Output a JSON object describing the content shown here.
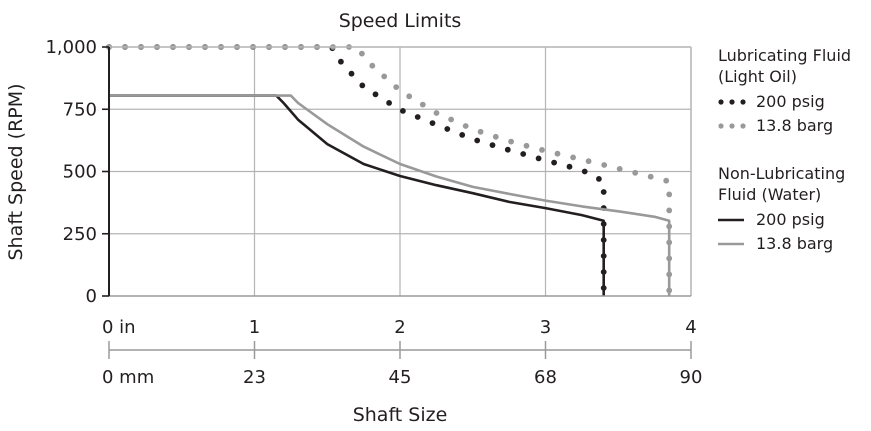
{
  "chart_data": {
    "type": "line",
    "title": "Speed Limits",
    "xlabel": "Shaft Size",
    "ylabel": "Shaft Speed (RPM)",
    "xlim": [
      0,
      4
    ],
    "ylim": [
      0,
      1000
    ],
    "grid": true,
    "legend_position": "right",
    "y_ticks": [
      {
        "value": 0,
        "label": "0"
      },
      {
        "value": 250,
        "label": "250"
      },
      {
        "value": 500,
        "label": "500"
      },
      {
        "value": 750,
        "label": "750"
      },
      {
        "value": 1000,
        "label": "1,000"
      }
    ],
    "x_ticks_in": [
      {
        "value": 0,
        "label": "0 in"
      },
      {
        "value": 1,
        "label": "1"
      },
      {
        "value": 2,
        "label": "2"
      },
      {
        "value": 3,
        "label": "3"
      },
      {
        "value": 4,
        "label": "4"
      }
    ],
    "x_ticks_mm": [
      {
        "value": 0,
        "label": "0 mm"
      },
      {
        "value": 1,
        "label": "23"
      },
      {
        "value": 2,
        "label": "45"
      },
      {
        "value": 3,
        "label": "68"
      },
      {
        "value": 4,
        "label": "90"
      }
    ],
    "legend_groups": [
      {
        "title_lines": [
          "Lubricating Fluid",
          "(Light Oil)"
        ],
        "entries": [
          {
            "label": "200 psig",
            "series": "oil-200psig"
          },
          {
            "label": "13.8 barg",
            "series": "oil-13.8barg"
          }
        ]
      },
      {
        "title_lines": [
          "Non-Lubricating",
          "Fluid (Water)"
        ],
        "entries": [
          {
            "label": "200 psig",
            "series": "water-200psig"
          },
          {
            "label": "13.8 barg",
            "series": "water-13.8barg"
          }
        ]
      }
    ],
    "series": [
      {
        "id": "oil-200psig",
        "style": "dotted",
        "color": "#231f20",
        "x": [
          0,
          1.53,
          1.6,
          1.75,
          2.0,
          2.25,
          2.5,
          2.75,
          3.0,
          3.25,
          3.4,
          3.4,
          3.4,
          3.4,
          3.4
        ],
        "y": [
          1000,
          1000,
          935,
          840,
          748,
          688,
          630,
          586,
          545,
          506,
          460,
          350,
          250,
          100,
          0
        ]
      },
      {
        "id": "oil-13.8barg",
        "style": "dotted",
        "color": "#999999",
        "x": [
          0,
          1.7,
          1.8,
          2.0,
          2.25,
          2.5,
          2.75,
          3.0,
          3.25,
          3.5,
          3.75,
          3.85,
          3.85,
          3.85,
          3.85,
          3.85
        ],
        "y": [
          1000,
          1000,
          930,
          825,
          735,
          670,
          622,
          583,
          548,
          512,
          475,
          460,
          350,
          250,
          100,
          0
        ]
      },
      {
        "id": "water-200psig",
        "style": "solid",
        "color": "#231f20",
        "x": [
          0,
          1.15,
          1.2,
          1.3,
          1.5,
          1.75,
          2.0,
          2.25,
          2.5,
          2.75,
          3.0,
          3.25,
          3.4,
          3.4
        ],
        "y": [
          805,
          805,
          775,
          708,
          610,
          530,
          482,
          445,
          413,
          378,
          353,
          325,
          302,
          0
        ]
      },
      {
        "id": "water-13.8barg",
        "style": "solid",
        "color": "#999999",
        "x": [
          0,
          1.25,
          1.3,
          1.5,
          1.75,
          2.0,
          2.25,
          2.5,
          2.75,
          3.0,
          3.25,
          3.5,
          3.75,
          3.85,
          3.85
        ],
        "y": [
          805,
          805,
          775,
          690,
          600,
          530,
          480,
          438,
          410,
          383,
          360,
          340,
          318,
          302,
          0
        ]
      }
    ]
  }
}
